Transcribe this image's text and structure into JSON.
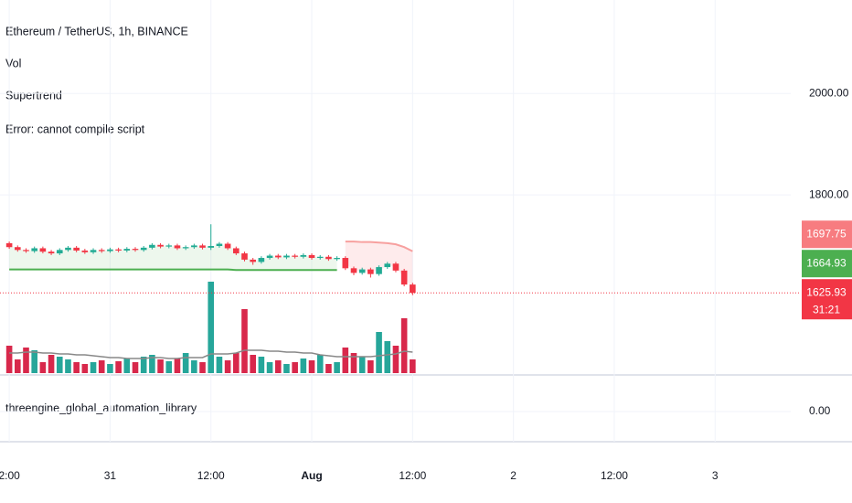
{
  "chart_data": {
    "type": "candlestick",
    "title": "Ethereum / TetherUS, 1h, BINANCE",
    "legend": [
      "Vol",
      "Supertrend",
      "Error: cannot compile script"
    ],
    "x": [
      0,
      1,
      2,
      3,
      4,
      5,
      6,
      7,
      8,
      9,
      10,
      11,
      12,
      13,
      14,
      15,
      16,
      17,
      18,
      19,
      20,
      21,
      22,
      23,
      24,
      25,
      26,
      27,
      28,
      29,
      30,
      31,
      32,
      33,
      34,
      35,
      36,
      37,
      38,
      39,
      40,
      41,
      42,
      43,
      44,
      45,
      46,
      47,
      48
    ],
    "open": [
      1712,
      1705,
      1700,
      1698,
      1703,
      1697,
      1694,
      1700,
      1704,
      1699,
      1696,
      1700,
      1698,
      1701,
      1699,
      1702,
      1700,
      1704,
      1709,
      1706,
      1708,
      1703,
      1705,
      1708,
      1704,
      1707,
      1711,
      1703,
      1694,
      1683,
      1679,
      1686,
      1690,
      1687,
      1690,
      1688,
      1691,
      1686,
      1688,
      1684,
      1686,
      1668,
      1660,
      1666,
      1658,
      1670,
      1676,
      1664,
      1640
    ],
    "high": [
      1715,
      1708,
      1703,
      1706,
      1706,
      1700,
      1703,
      1707,
      1707,
      1702,
      1703,
      1703,
      1704,
      1704,
      1705,
      1705,
      1707,
      1712,
      1712,
      1711,
      1711,
      1708,
      1711,
      1711,
      1746,
      1714,
      1714,
      1706,
      1697,
      1686,
      1689,
      1693,
      1693,
      1693,
      1693,
      1694,
      1694,
      1691,
      1691,
      1689,
      1689,
      1671,
      1669,
      1669,
      1673,
      1679,
      1679,
      1667,
      1643
    ],
    "low": [
      1702,
      1697,
      1695,
      1695,
      1694,
      1691,
      1691,
      1697,
      1696,
      1693,
      1693,
      1695,
      1695,
      1696,
      1696,
      1697,
      1697,
      1701,
      1703,
      1703,
      1700,
      1700,
      1702,
      1701,
      1700,
      1704,
      1700,
      1691,
      1680,
      1674,
      1676,
      1683,
      1684,
      1684,
      1685,
      1685,
      1683,
      1683,
      1681,
      1681,
      1665,
      1656,
      1657,
      1652,
      1655,
      1667,
      1661,
      1637,
      1622
    ],
    "close": [
      1705,
      1700,
      1698,
      1703,
      1697,
      1694,
      1700,
      1704,
      1699,
      1696,
      1700,
      1698,
      1701,
      1699,
      1702,
      1700,
      1704,
      1709,
      1706,
      1708,
      1703,
      1705,
      1708,
      1704,
      1707,
      1711,
      1703,
      1694,
      1683,
      1679,
      1686,
      1690,
      1687,
      1690,
      1688,
      1691,
      1686,
      1688,
      1684,
      1686,
      1668,
      1660,
      1666,
      1658,
      1670,
      1676,
      1664,
      1640,
      1625.93
    ],
    "up_color": "#22ab94",
    "down_color": "#f23645",
    "xlim": [
      -1.1,
      93
    ],
    "xticks": [
      {
        "value": 0,
        "label": "2:00"
      },
      {
        "value": 12,
        "label": "31"
      },
      {
        "value": 24,
        "label": "12:00"
      },
      {
        "value": 36,
        "label": "Aug"
      },
      {
        "value": 48,
        "label": "12:00"
      },
      {
        "value": 60,
        "label": "2"
      },
      {
        "value": 72,
        "label": "12:00"
      },
      {
        "value": 84,
        "label": "3"
      }
    ],
    "ylim": [
      1493,
      2204
    ],
    "yticks": [
      {
        "value": 2000,
        "label": "2000.00"
      },
      {
        "value": 1800,
        "label": "1800.00"
      }
    ],
    "log_scale": true,
    "grid": true,
    "supertrend": {
      "up": {
        "color": "#4caf50",
        "values": [
          1666,
          1666,
          1666,
          1666,
          1666,
          1666,
          1666,
          1666,
          1666,
          1666,
          1666,
          1666,
          1666,
          1666,
          1666,
          1666,
          1666,
          1666,
          1666,
          1666,
          1666,
          1666,
          1666,
          1666,
          1666,
          1666,
          1666,
          1664.93,
          1664.93,
          1664.93,
          1664.93,
          1664.93,
          1664.93,
          1664.93,
          1664.93,
          1664.93,
          1664.93,
          1664.93,
          1664.93,
          1664.93,
          null,
          null,
          null,
          null,
          null,
          null,
          null,
          null,
          null
        ]
      },
      "down": {
        "color": "#f7a09f",
        "values": [
          null,
          null,
          null,
          null,
          null,
          null,
          null,
          null,
          null,
          null,
          null,
          null,
          null,
          null,
          null,
          null,
          null,
          null,
          null,
          null,
          null,
          null,
          null,
          null,
          null,
          null,
          null,
          null,
          null,
          null,
          null,
          null,
          null,
          null,
          null,
          null,
          null,
          null,
          null,
          null,
          1715,
          1715,
          1714,
          1714,
          1713,
          1712,
          1710,
          1705,
          1697.75
        ]
      }
    },
    "volume": {
      "values": [
        30,
        15,
        28,
        25,
        12,
        20,
        18,
        15,
        12,
        10,
        12,
        14,
        10,
        13,
        16,
        12,
        18,
        20,
        15,
        13,
        16,
        22,
        14,
        12,
        100,
        18,
        14,
        22,
        70,
        20,
        18,
        12,
        14,
        10,
        12,
        16,
        14,
        20,
        10,
        12,
        28,
        22,
        18,
        14,
        45,
        35,
        30,
        60,
        15
      ],
      "ma": [
        22,
        22,
        23,
        23,
        22,
        22,
        21,
        21,
        20,
        20,
        19,
        18,
        17,
        17,
        16,
        16,
        16,
        17,
        17,
        16,
        16,
        17,
        17,
        17,
        21,
        21,
        21,
        22,
        25,
        25,
        25,
        24,
        24,
        23,
        23,
        22,
        22,
        20,
        19,
        18,
        18,
        18,
        18,
        18,
        19,
        20,
        21,
        24,
        23
      ],
      "ylim": [
        0,
        110
      ],
      "up_color": "#26a69a",
      "down_color": "#d8284b",
      "ma_color": "#888888"
    },
    "price_labels": [
      {
        "value": 1697.75,
        "label": "1697.75",
        "color": "#f77c80"
      },
      {
        "value": 1664.93,
        "label": "1664.93",
        "color": "#4caf50"
      },
      {
        "value": 1625.93,
        "label": "1625.93",
        "color": "#f23645"
      }
    ],
    "countdown": "31:21",
    "indicator": {
      "name": "threengine_global_automation_library",
      "ylim": [
        -1,
        1
      ],
      "yticks": [
        {
          "value": 0,
          "label": "0.00"
        }
      ]
    }
  }
}
